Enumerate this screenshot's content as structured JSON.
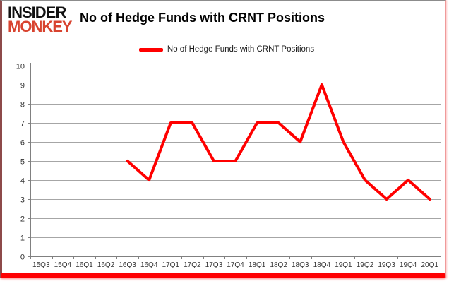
{
  "header": {
    "logo_line1": "INSIDER",
    "logo_line2": "MONKEY",
    "title": "No of Hedge Funds with CRNT Positions"
  },
  "legend": {
    "label": "No of Hedge Funds with CRNT Positions"
  },
  "chart_data": {
    "type": "line",
    "title": "No of Hedge Funds with CRNT Positions",
    "categories": [
      "15Q3",
      "15Q4",
      "16Q1",
      "16Q2",
      "16Q3",
      "16Q4",
      "17Q1",
      "17Q2",
      "17Q3",
      "17Q4",
      "18Q1",
      "18Q2",
      "18Q3",
      "18Q4",
      "19Q1",
      "19Q2",
      "19Q3",
      "19Q4",
      "20Q1"
    ],
    "series": [
      {
        "name": "No of Hedge Funds with CRNT Positions",
        "values": [
          null,
          null,
          null,
          null,
          5,
          4,
          7,
          7,
          5,
          5,
          7,
          7,
          6,
          9,
          6,
          4,
          3,
          4,
          3
        ]
      }
    ],
    "xlabel": "",
    "ylabel": "",
    "ylim": [
      0,
      10
    ],
    "ytick_step": 1,
    "grid": "horizontal",
    "legend_position": "top-center",
    "colors": {
      "line": "#FF0000",
      "grid": "#A6A6A6",
      "axis": "#808080",
      "tick_text": "#333333",
      "logo_accent": "#D8432F",
      "bottom_bar": "#FE0002"
    }
  }
}
